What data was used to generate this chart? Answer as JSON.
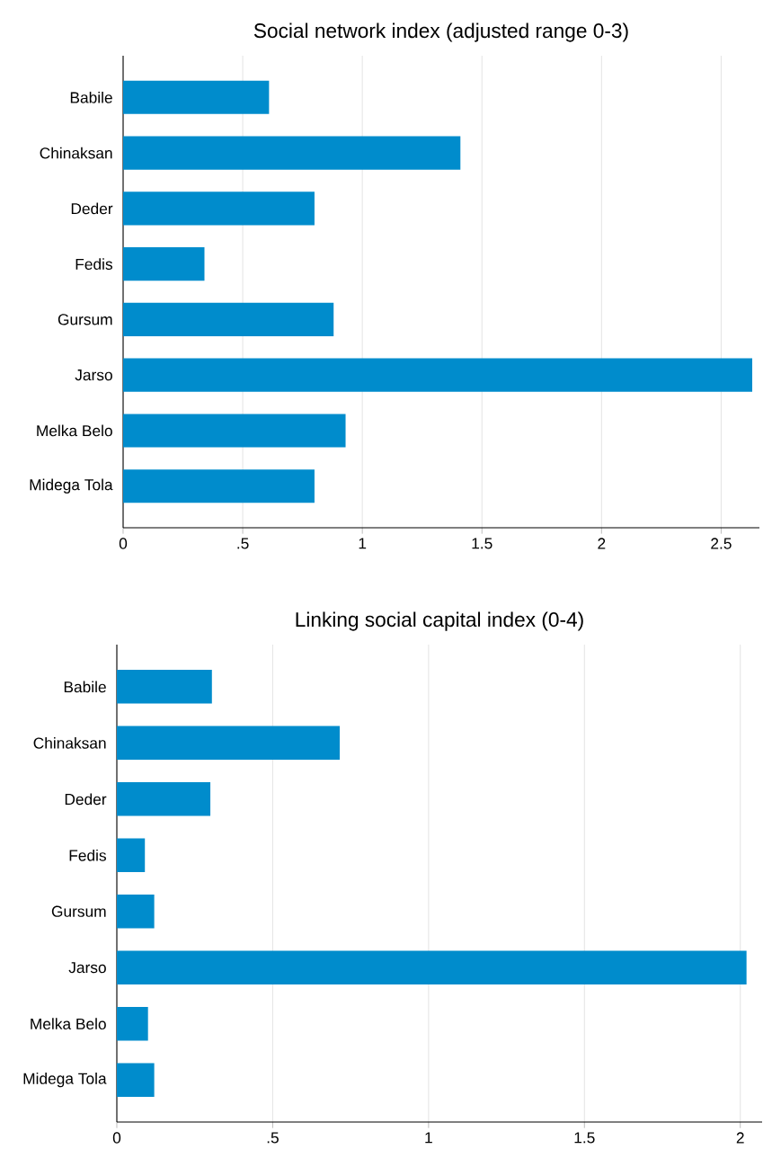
{
  "chart_data": [
    {
      "type": "bar",
      "orientation": "horizontal",
      "title": "Social network index (adjusted range 0-3)",
      "categories": [
        "Babile",
        "Chinaksan",
        "Deder",
        "Fedis",
        "Gursum",
        "Jarso",
        "Melka Belo",
        "Midega Tola"
      ],
      "values": [
        0.61,
        1.41,
        0.8,
        0.34,
        0.88,
        2.63,
        0.93,
        0.8
      ],
      "color": "#008ccc",
      "xlim": [
        0,
        2.66
      ],
      "xticks": [
        0,
        {
          "value": 0.5,
          "label": ".5"
        },
        1,
        1.5,
        2,
        2.5
      ],
      "grid": "x"
    },
    {
      "type": "bar",
      "orientation": "horizontal",
      "title": "Linking social capital index (0-4)",
      "categories": [
        "Babile",
        "Chinaksan",
        "Deder",
        "Fedis",
        "Gursum",
        "Jarso",
        "Melka Belo",
        "Midega Tola"
      ],
      "values": [
        0.305,
        0.715,
        0.3,
        0.09,
        0.12,
        2.02,
        0.1,
        0.12
      ],
      "color": "#008ccc",
      "xlim": [
        0,
        2.07
      ],
      "xticks": [
        0,
        {
          "value": 0.5,
          "label": ".5"
        },
        1,
        1.5,
        2
      ],
      "grid": "x"
    }
  ]
}
